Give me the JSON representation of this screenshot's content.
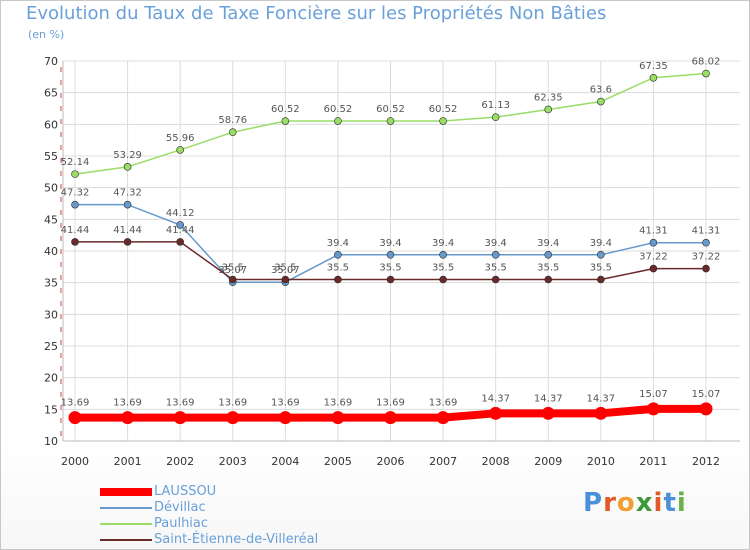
{
  "chart_data": {
    "type": "line",
    "title": "Evolution du Taux de Taxe Foncière sur les Propriétés Non Bâties",
    "subtitle": "(en %)",
    "ylim": [
      10,
      70
    ],
    "yticks": [
      10,
      15,
      20,
      25,
      30,
      35,
      40,
      45,
      50,
      55,
      60,
      65,
      70
    ],
    "categories": [
      "2000",
      "2001",
      "2002",
      "2003",
      "2004",
      "2005",
      "2006",
      "2007",
      "2008",
      "2009",
      "2010",
      "2011",
      "2012"
    ],
    "series": [
      {
        "name": "LAUSSOU",
        "color": "#ff0000",
        "emphasis": true,
        "values": [
          13.69,
          13.69,
          13.69,
          13.69,
          13.69,
          13.69,
          13.69,
          13.69,
          14.37,
          14.37,
          14.37,
          15.07,
          15.07
        ],
        "labels": [
          "13.69",
          "13.69",
          "13.69",
          "13.69",
          "13.69",
          "13.69",
          "13.69",
          "13.69",
          "14.37",
          "14.37",
          "14.37",
          "15.07",
          "15.07"
        ]
      },
      {
        "name": "Dévillac",
        "color": "#6699cc",
        "emphasis": false,
        "values": [
          47.32,
          47.32,
          44.12,
          35.07,
          35.07,
          39.4,
          39.4,
          39.4,
          39.4,
          39.4,
          39.4,
          41.31,
          41.31
        ],
        "labels": [
          "47.32",
          "47.32",
          "44.12",
          "35.07",
          "35.07",
          "39.4",
          "39.4",
          "39.4",
          "39.4",
          "39.4",
          "39.4",
          "41.31",
          "41.31"
        ]
      },
      {
        "name": "Paulhiac",
        "color": "#99dd66",
        "emphasis": false,
        "values": [
          52.14,
          53.29,
          55.96,
          58.76,
          60.52,
          60.52,
          60.52,
          60.52,
          61.13,
          62.35,
          63.6,
          67.35,
          68.02
        ],
        "labels": [
          "52.14",
          "53.29",
          "55.96",
          "58.76",
          "60.52",
          "60.52",
          "60.52",
          "60.52",
          "61.13",
          "62.35",
          "63.6",
          "67.35",
          "68.02"
        ]
      },
      {
        "name": "Saint-Étienne-de-Villeréal",
        "color": "#6b2a2a",
        "emphasis": false,
        "values": [
          41.44,
          41.44,
          41.44,
          35.5,
          35.5,
          35.5,
          35.5,
          35.5,
          35.5,
          35.5,
          35.5,
          37.22,
          37.22
        ],
        "labels": [
          "41.44",
          "41.44",
          "41.44",
          "35.5",
          "35.5",
          "35.5",
          "35.5",
          "35.5",
          "35.5",
          "35.5",
          "35.5",
          "37.22",
          "37.22"
        ]
      }
    ],
    "grid": true,
    "legend": "bottom-left"
  },
  "brand": {
    "letters": [
      "P",
      "r",
      "o",
      "x",
      "i",
      "t",
      "i"
    ],
    "colors": [
      "#4a90d9",
      "#e05a2a",
      "#f0a030",
      "#3a9a3a",
      "#e05a2a",
      "#4a90d9",
      "#6ab04c"
    ]
  }
}
